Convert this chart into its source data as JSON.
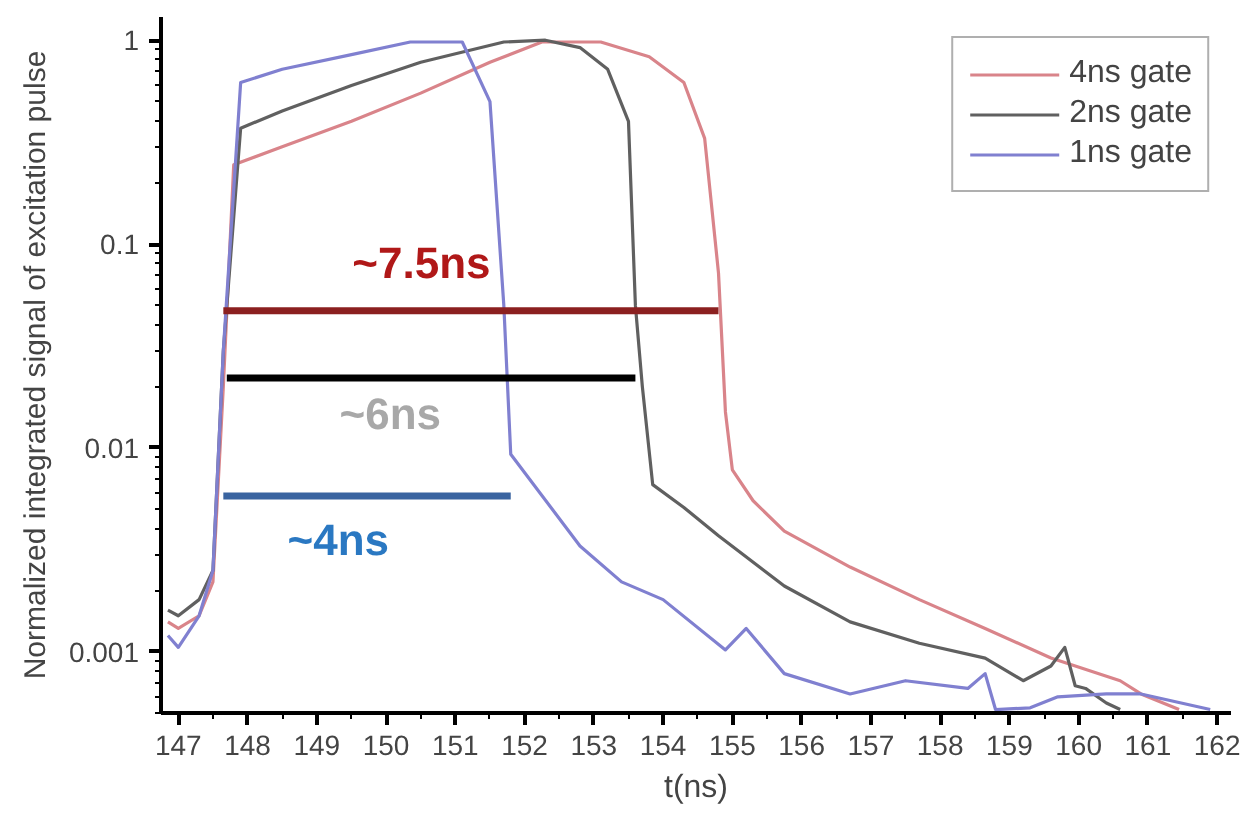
{
  "chart_data": {
    "type": "line",
    "xlabel": "t(ns)",
    "ylabel": "Normalized integrated signal of excitation pulse",
    "log": "y",
    "xlim": [
      146.75,
      162.2
    ],
    "ylim": [
      0.0005,
      1.3
    ],
    "xticks": [
      147,
      148,
      149,
      150,
      151,
      152,
      153,
      154,
      155,
      156,
      157,
      158,
      159,
      160,
      161,
      162
    ],
    "yticks": [
      0.001,
      0.01,
      0.1,
      1
    ],
    "grid": false,
    "legend": "top right",
    "marker": "none",
    "line_style": "solid",
    "series": [
      {
        "name": "4ns gate",
        "color": "#d9848a",
        "x": [
          146.85,
          147.0,
          147.3,
          147.5,
          147.65,
          147.8,
          148.5,
          149.5,
          150.5,
          151.5,
          152.25,
          153.1,
          153.8,
          154.3,
          154.6,
          154.8,
          154.9,
          155.0,
          155.3,
          155.75,
          156.7,
          157.7,
          158.65,
          159.6,
          160.6,
          160.9,
          161.45
        ],
        "values": [
          0.0014,
          0.0013,
          0.0015,
          0.0022,
          0.02,
          0.245,
          0.3,
          0.4,
          0.55,
          0.78,
          0.98,
          0.98,
          0.83,
          0.62,
          0.33,
          0.072,
          0.015,
          0.0078,
          0.0055,
          0.0039,
          0.0026,
          0.0018,
          0.0013,
          0.00093,
          0.00072,
          0.00062,
          0.00052
        ]
      },
      {
        "name": "2ns gate",
        "color": "#606060",
        "x": [
          146.85,
          147.0,
          147.3,
          147.5,
          147.65,
          147.9,
          148.5,
          149.5,
          150.5,
          151.7,
          152.3,
          152.8,
          153.2,
          153.5,
          153.6,
          153.7,
          153.85,
          154.3,
          154.8,
          155.75,
          156.7,
          157.7,
          158.65,
          159.2,
          159.6,
          159.8,
          159.95,
          160.1,
          160.4,
          160.6
        ],
        "values": [
          0.0016,
          0.0015,
          0.0018,
          0.0025,
          0.03,
          0.37,
          0.45,
          0.6,
          0.78,
          0.98,
          1.0,
          0.92,
          0.72,
          0.4,
          0.05,
          0.02,
          0.0066,
          0.0051,
          0.0037,
          0.0021,
          0.0014,
          0.0011,
          0.00093,
          0.00072,
          0.00085,
          0.00105,
          0.00068,
          0.00066,
          0.00056,
          0.00052
        ]
      },
      {
        "name": "1ns gate",
        "color": "#8080d0",
        "x": [
          146.85,
          147.0,
          147.3,
          147.5,
          147.65,
          147.9,
          148.5,
          149.5,
          150.35,
          151.1,
          151.5,
          151.7,
          151.8,
          152.8,
          153.4,
          154.0,
          154.9,
          155.2,
          155.75,
          156.7,
          157.5,
          158.4,
          158.65,
          158.8,
          159.3,
          159.7,
          160.4,
          160.9,
          161.9
        ],
        "values": [
          0.0012,
          0.00105,
          0.0015,
          0.0025,
          0.03,
          0.62,
          0.72,
          0.85,
          0.98,
          0.98,
          0.5,
          0.05,
          0.0093,
          0.0033,
          0.0022,
          0.0018,
          0.00102,
          0.0013,
          0.00078,
          0.00062,
          0.00072,
          0.00066,
          0.00078,
          0.00052,
          0.00053,
          0.0006,
          0.00062,
          0.00062,
          0.00052
        ]
      },
      {
        "color": "#8b2020",
        "x": [
          147.65,
          154.8
        ],
        "values": [
          0.047,
          0.047
        ]
      },
      {
        "color": "#000000",
        "x": [
          147.7,
          153.6
        ],
        "values": [
          0.022,
          0.022
        ]
      },
      {
        "color": "#3a64a0",
        "x": [
          147.65,
          151.8
        ],
        "values": [
          0.0058,
          0.0058
        ]
      }
    ],
    "annotations": [
      "~7.5ns",
      "~6ns",
      "~4ns"
    ]
  }
}
